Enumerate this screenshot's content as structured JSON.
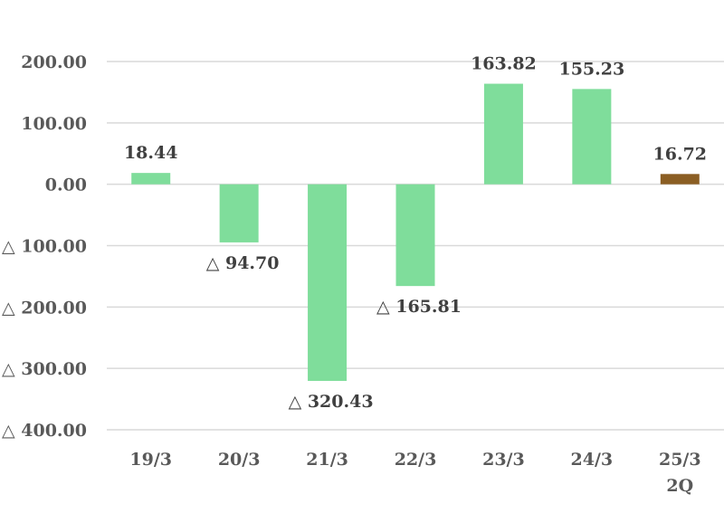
{
  "chart_data": {
    "type": "bar",
    "categories": [
      "19/3",
      "20/3",
      "21/3",
      "22/3",
      "23/3",
      "24/3",
      "25/3\n2Q"
    ],
    "values": [
      18.44,
      -94.7,
      -320.43,
      -165.81,
      163.82,
      155.23,
      16.72
    ],
    "data_labels": [
      "18.44",
      "△ 94.70",
      "△ 320.43",
      "△ 165.81",
      "163.82",
      "155.23",
      "16.72"
    ],
    "y_ticks": [
      200,
      100,
      0,
      -100,
      -200,
      -300,
      -400
    ],
    "y_tick_labels": [
      "200.00",
      "100.00",
      "0.00",
      "△ 100.00",
      "△ 200.00",
      "△ 300.00",
      "△ 400.00"
    ],
    "ylim": [
      -400,
      200
    ],
    "grid": true,
    "colors": {
      "bar": "#7fdd9b",
      "highlight_bar": "#8b5e23",
      "grid": "#d9d9d9",
      "tick_text": "#595959",
      "label_text": "#404040"
    },
    "highlight_index": 6,
    "title": "",
    "xlabel": "",
    "ylabel": ""
  }
}
